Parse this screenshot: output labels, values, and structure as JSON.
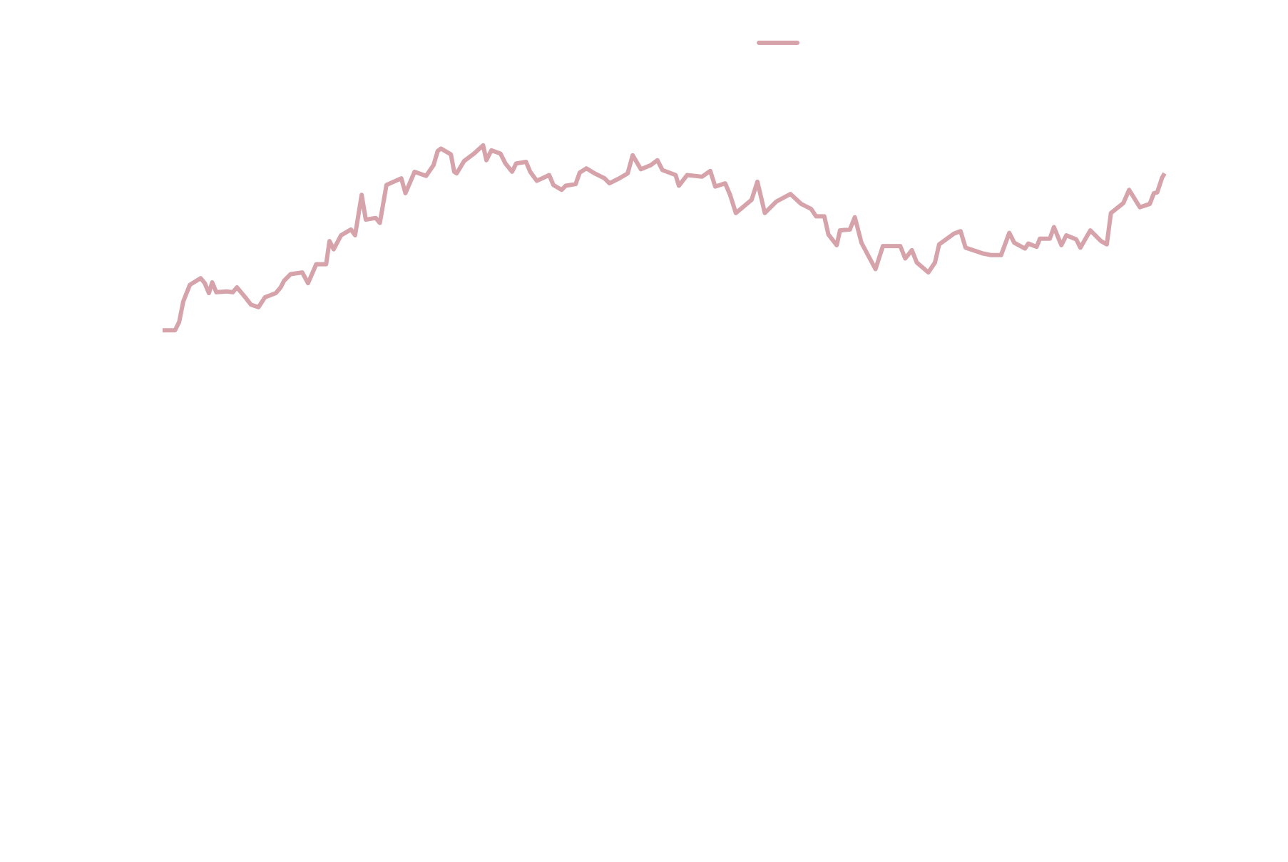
{
  "chart_data": {
    "type": "line",
    "x": [
      197,
      212,
      217,
      222,
      230,
      243,
      248,
      253,
      257,
      262,
      275,
      282,
      287,
      297,
      304,
      313,
      321,
      334,
      340,
      344,
      352,
      366,
      373,
      383,
      395,
      399,
      404,
      413,
      425,
      430,
      438,
      443,
      455,
      460,
      468,
      486,
      491,
      502,
      516,
      525,
      530,
      534,
      546,
      550,
      553,
      562,
      574,
      585,
      589,
      595,
      606,
      612,
      620,
      625,
      637,
      642,
      650,
      665,
      670,
      680,
      685,
      697,
      702,
      710,
      720,
      732,
      738,
      750,
      760,
      766,
      776,
      788,
      796,
      802,
      818,
      822,
      832,
      850,
      860,
      866,
      878,
      884,
      891,
      910,
      917,
      926,
      940,
      957,
      970,
      982,
      988,
      998,
      1003,
      1013,
      1017,
      1029,
      1035,
      1043,
      1060,
      1069,
      1090,
      1096,
      1104,
      1110,
      1124,
      1132,
      1137,
      1155,
      1163,
      1169,
      1190,
      1200,
      1212,
      1222,
      1228,
      1241,
      1245,
      1255,
      1259,
      1271,
      1276,
      1285,
      1291,
      1303,
      1308,
      1320,
      1333,
      1340,
      1345,
      1360,
      1367,
      1380,
      1392,
      1397,
      1401,
      1407,
      1410
    ],
    "series": [
      {
        "color": "#d6a3ab",
        "values": [
          60,
          60,
          61,
          63.5,
          65.5,
          66.3,
          65.7,
          64.5,
          65.8,
          64.6,
          64.7,
          64.6,
          65.2,
          64,
          63.1,
          62.8,
          64,
          64.5,
          65.2,
          66,
          66.8,
          67,
          65.7,
          68,
          68,
          70.8,
          69.8,
          71.5,
          72.2,
          71.5,
          76.4,
          73.4,
          73.6,
          73,
          77.6,
          78.4,
          76.6,
          79.2,
          78.7,
          80,
          81.7,
          82,
          81.3,
          79.2,
          79,
          80.5,
          81.4,
          82.4,
          80.6,
          81.8,
          81.4,
          80.2,
          79.2,
          80.2,
          80.4,
          79.2,
          78.1,
          78.8,
          77.6,
          77,
          77.5,
          77.7,
          79.1,
          79.6,
          79,
          78.4,
          77.8,
          78.4,
          79,
          81.2,
          79.5,
          80,
          80.6,
          79.4,
          78.8,
          77.5,
          78.8,
          78.6,
          79.3,
          77.4,
          77.8,
          76.4,
          74.2,
          75.8,
          78,
          74.2,
          75.6,
          76.5,
          75.3,
          74.7,
          73.8,
          73.8,
          71.6,
          70.3,
          72.1,
          72.2,
          73.7,
          70.6,
          67.4,
          70.2,
          70.2,
          68.7,
          69.7,
          68.2,
          67,
          68.2,
          70.4,
          71.7,
          72,
          70,
          69.3,
          69.1,
          69.1,
          71.8,
          70.6,
          69.9,
          70.5,
          70.1,
          71.1,
          71.1,
          72.5,
          70.3,
          71.5,
          71,
          70,
          72.1,
          70.8,
          70.4,
          74.2,
          75.4,
          77,
          74.9,
          75.3,
          76.6,
          76.7,
          78.5,
          79
        ]
      }
    ],
    "xlim": [
      197,
      1410
    ],
    "ylim": [
      0,
      100
    ],
    "legend": "top"
  }
}
